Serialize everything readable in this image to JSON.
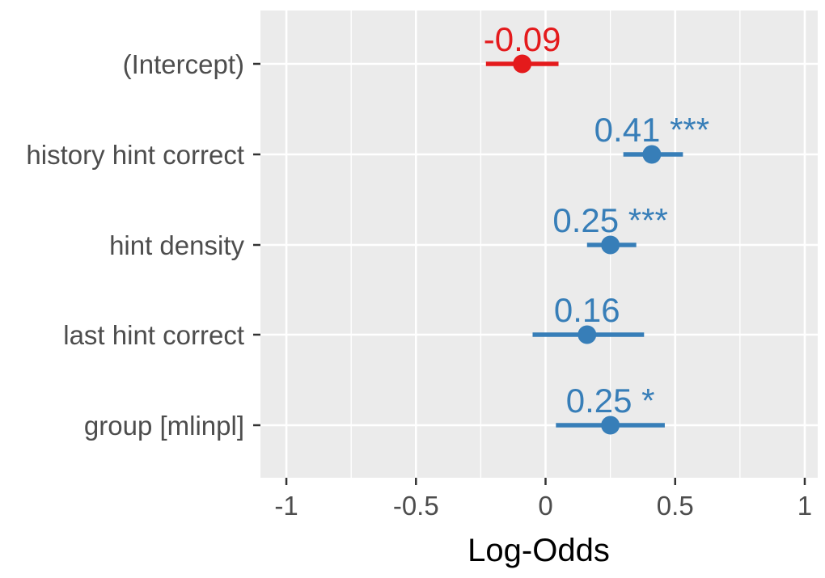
{
  "chart_data": {
    "type": "forest",
    "title": "",
    "xlabel": "Log-Odds",
    "ylabel": "",
    "xlim": [
      -1.1,
      1.05
    ],
    "x_ticks": [
      -1,
      -0.5,
      0,
      0.5,
      1
    ],
    "x_tick_labels": [
      "-1",
      "-0.5",
      "0",
      "0.5",
      "1"
    ],
    "grid": true,
    "panel_background": "#ebebeb",
    "colors": {
      "negative": "#e41a1c",
      "positive": "#377eb8"
    },
    "terms": [
      {
        "label": "(Intercept)",
        "estimate": -0.09,
        "ci_low": -0.23,
        "ci_high": 0.05,
        "value_label": "-0.09",
        "stars": "",
        "sign": "negative"
      },
      {
        "label": "history hint correct",
        "estimate": 0.41,
        "ci_low": 0.3,
        "ci_high": 0.53,
        "value_label": "0.41",
        "stars": "***",
        "sign": "positive"
      },
      {
        "label": "hint density",
        "estimate": 0.25,
        "ci_low": 0.16,
        "ci_high": 0.35,
        "value_label": "0.25",
        "stars": "***",
        "sign": "positive"
      },
      {
        "label": "last hint correct",
        "estimate": 0.16,
        "ci_low": -0.05,
        "ci_high": 0.38,
        "value_label": "0.16",
        "stars": "",
        "sign": "positive"
      },
      {
        "label": "group [mlinpl]",
        "estimate": 0.25,
        "ci_low": 0.04,
        "ci_high": 0.46,
        "value_label": "0.25",
        "stars": "*",
        "sign": "positive"
      }
    ]
  }
}
